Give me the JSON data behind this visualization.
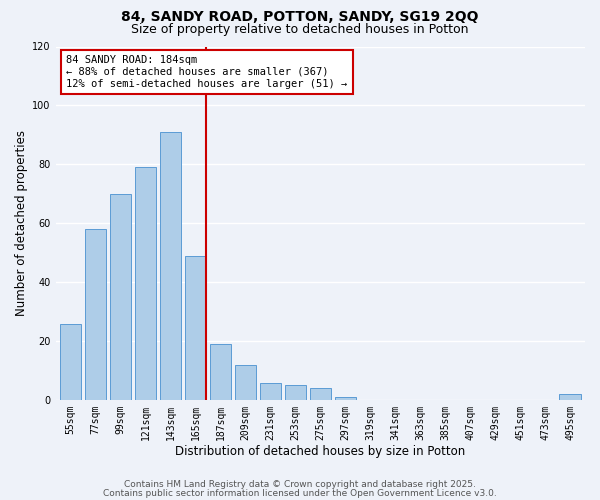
{
  "title": "84, SANDY ROAD, POTTON, SANDY, SG19 2QQ",
  "subtitle": "Size of property relative to detached houses in Potton",
  "xlabel": "Distribution of detached houses by size in Potton",
  "ylabel": "Number of detached properties",
  "categories": [
    "55sqm",
    "77sqm",
    "99sqm",
    "121sqm",
    "143sqm",
    "165sqm",
    "187sqm",
    "209sqm",
    "231sqm",
    "253sqm",
    "275sqm",
    "297sqm",
    "319sqm",
    "341sqm",
    "363sqm",
    "385sqm",
    "407sqm",
    "429sqm",
    "451sqm",
    "473sqm",
    "495sqm"
  ],
  "values": [
    26,
    58,
    70,
    79,
    91,
    49,
    19,
    12,
    6,
    5,
    4,
    1,
    0,
    0,
    0,
    0,
    0,
    0,
    0,
    0,
    2
  ],
  "bar_color": "#aecde8",
  "bar_edge_color": "#5b9bd5",
  "vline_color": "#cc0000",
  "annotation_line1": "84 SANDY ROAD: 184sqm",
  "annotation_line2": "← 88% of detached houses are smaller (367)",
  "annotation_line3": "12% of semi-detached houses are larger (51) →",
  "annotation_box_color": "#ffffff",
  "annotation_box_edge_color": "#cc0000",
  "ylim": [
    0,
    120
  ],
  "yticks": [
    0,
    20,
    40,
    60,
    80,
    100,
    120
  ],
  "footer1": "Contains HM Land Registry data © Crown copyright and database right 2025.",
  "footer2": "Contains public sector information licensed under the Open Government Licence v3.0.",
  "background_color": "#eef2f9",
  "grid_color": "#ffffff",
  "title_fontsize": 10,
  "subtitle_fontsize": 9,
  "axis_label_fontsize": 8.5,
  "tick_fontsize": 7,
  "annotation_fontsize": 7.5,
  "footer_fontsize": 6.5
}
